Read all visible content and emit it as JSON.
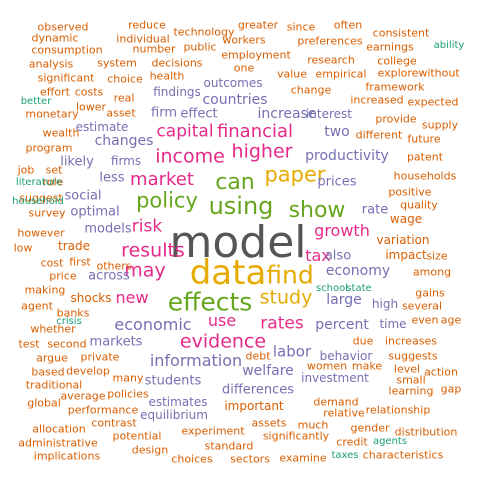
{
  "palette": {
    "gray": "#555555",
    "gold": "#e6ab02",
    "green": "#66a61e",
    "magenta": "#e7298a",
    "purple": "#7570b3",
    "orange": "#d95f02",
    "teal": "#1b9e77"
  },
  "words": [
    {
      "text": "model",
      "color": "gray"
    },
    {
      "text": "data",
      "color": "gold"
    },
    {
      "text": "effects",
      "color": "green"
    },
    {
      "text": "find",
      "color": "gold"
    },
    {
      "text": "using",
      "color": "green"
    },
    {
      "text": "can",
      "color": "green"
    },
    {
      "text": "show",
      "color": "green"
    },
    {
      "text": "policy",
      "color": "green"
    },
    {
      "text": "paper",
      "color": "gold"
    },
    {
      "text": "higher",
      "color": "magenta"
    },
    {
      "text": "evidence",
      "color": "magenta"
    },
    {
      "text": "study",
      "color": "gold"
    },
    {
      "text": "may",
      "color": "magenta"
    },
    {
      "text": "results",
      "color": "magenta"
    },
    {
      "text": "income",
      "color": "magenta"
    },
    {
      "text": "market",
      "color": "magenta"
    },
    {
      "text": "financial",
      "color": "magenta"
    },
    {
      "text": "capital",
      "color": "magenta"
    },
    {
      "text": "rates",
      "color": "magenta"
    },
    {
      "text": "risk",
      "color": "magenta"
    },
    {
      "text": "use",
      "color": "magenta"
    },
    {
      "text": "growth",
      "color": "magenta"
    },
    {
      "text": "tax",
      "color": "magenta"
    },
    {
      "text": "new",
      "color": "magenta"
    },
    {
      "text": "information",
      "color": "purple"
    },
    {
      "text": "economic",
      "color": "purple"
    },
    {
      "text": "labor",
      "color": "purple"
    },
    {
      "text": "productivity",
      "color": "purple"
    },
    {
      "text": "economy",
      "color": "purple"
    },
    {
      "text": "percent",
      "color": "purple"
    },
    {
      "text": "large",
      "color": "purple"
    },
    {
      "text": "welfare",
      "color": "purple"
    },
    {
      "text": "increase",
      "color": "purple"
    },
    {
      "text": "countries",
      "color": "purple"
    },
    {
      "text": "changes",
      "color": "purple"
    },
    {
      "text": "two",
      "color": "purple"
    },
    {
      "text": "effect",
      "color": "purple"
    },
    {
      "text": "firm",
      "color": "purple"
    },
    {
      "text": "prices",
      "color": "purple"
    },
    {
      "text": "rate",
      "color": "purple"
    },
    {
      "text": "also",
      "color": "purple"
    },
    {
      "text": "optimal",
      "color": "purple"
    },
    {
      "text": "models",
      "color": "purple"
    },
    {
      "text": "across",
      "color": "purple"
    },
    {
      "text": "students",
      "color": "purple"
    },
    {
      "text": "differences",
      "color": "purple"
    },
    {
      "text": "markets",
      "color": "purple"
    },
    {
      "text": "social",
      "color": "purple"
    },
    {
      "text": "less",
      "color": "purple"
    },
    {
      "text": "likely",
      "color": "purple"
    },
    {
      "text": "firms",
      "color": "purple"
    },
    {
      "text": "estimate",
      "color": "purple"
    },
    {
      "text": "outcomes",
      "color": "purple"
    },
    {
      "text": "findings",
      "color": "purple"
    },
    {
      "text": "interest",
      "color": "purple"
    },
    {
      "text": "behavior",
      "color": "purple"
    },
    {
      "text": "high",
      "color": "purple"
    },
    {
      "text": "time",
      "color": "purple"
    },
    {
      "text": "estimates",
      "color": "purple"
    },
    {
      "text": "investment",
      "color": "purple"
    },
    {
      "text": "wage",
      "color": "orange"
    },
    {
      "text": "important",
      "color": "orange"
    },
    {
      "text": "equilibrium",
      "color": "purple"
    },
    {
      "text": "shocks",
      "color": "orange"
    },
    {
      "text": "trade",
      "color": "orange"
    },
    {
      "text": "variation",
      "color": "orange"
    },
    {
      "text": "impact",
      "color": "orange"
    },
    {
      "text": "households",
      "color": "orange"
    },
    {
      "text": "positive",
      "color": "orange"
    },
    {
      "text": "quality",
      "color": "orange"
    },
    {
      "text": "among",
      "color": "orange"
    },
    {
      "text": "due",
      "color": "orange"
    },
    {
      "text": "increases",
      "color": "orange"
    },
    {
      "text": "suggests",
      "color": "orange"
    },
    {
      "text": "many",
      "color": "orange"
    },
    {
      "text": "policies",
      "color": "orange"
    },
    {
      "text": "private",
      "color": "orange"
    },
    {
      "text": "banks",
      "color": "orange"
    },
    {
      "text": "price",
      "color": "orange"
    },
    {
      "text": "first",
      "color": "orange"
    },
    {
      "text": "cost",
      "color": "orange"
    },
    {
      "text": "however",
      "color": "orange"
    },
    {
      "text": "survey",
      "color": "orange"
    },
    {
      "text": "suggest",
      "color": "orange"
    },
    {
      "text": "role",
      "color": "orange"
    },
    {
      "text": "program",
      "color": "orange"
    },
    {
      "text": "wealth",
      "color": "orange"
    },
    {
      "text": "job",
      "color": "orange"
    },
    {
      "text": "set",
      "color": "orange"
    },
    {
      "text": "asset",
      "color": "orange"
    },
    {
      "text": "real",
      "color": "orange"
    },
    {
      "text": "lower",
      "color": "orange"
    },
    {
      "text": "costs",
      "color": "orange"
    },
    {
      "text": "effort",
      "color": "orange"
    },
    {
      "text": "significant",
      "color": "orange"
    },
    {
      "text": "choice",
      "color": "orange"
    },
    {
      "text": "health",
      "color": "orange"
    },
    {
      "text": "decisions",
      "color": "orange"
    },
    {
      "text": "system",
      "color": "orange"
    },
    {
      "text": "number",
      "color": "orange"
    },
    {
      "text": "public",
      "color": "orange"
    },
    {
      "text": "workers",
      "color": "orange"
    },
    {
      "text": "employment",
      "color": "orange"
    },
    {
      "text": "one",
      "color": "orange"
    },
    {
      "text": "value",
      "color": "orange"
    },
    {
      "text": "empirical",
      "color": "orange"
    },
    {
      "text": "research",
      "color": "orange"
    },
    {
      "text": "preferences",
      "color": "orange"
    },
    {
      "text": "greater",
      "color": "orange"
    },
    {
      "text": "since",
      "color": "orange"
    },
    {
      "text": "often",
      "color": "orange"
    },
    {
      "text": "technology",
      "color": "orange"
    },
    {
      "text": "reduce",
      "color": "orange"
    },
    {
      "text": "individual",
      "color": "orange"
    },
    {
      "text": "observed",
      "color": "orange"
    },
    {
      "text": "dynamic",
      "color": "orange"
    },
    {
      "text": "consumption",
      "color": "orange"
    },
    {
      "text": "analysis",
      "color": "orange"
    },
    {
      "text": "monetary",
      "color": "orange"
    },
    {
      "text": "consistent",
      "color": "orange"
    },
    {
      "text": "earnings",
      "color": "orange"
    },
    {
      "text": "college",
      "color": "orange"
    },
    {
      "text": "explore",
      "color": "orange"
    },
    {
      "text": "without",
      "color": "orange"
    },
    {
      "text": "framework",
      "color": "orange"
    },
    {
      "text": "increased",
      "color": "orange"
    },
    {
      "text": "expected",
      "color": "orange"
    },
    {
      "text": "provide",
      "color": "orange"
    },
    {
      "text": "supply",
      "color": "orange"
    },
    {
      "text": "different",
      "color": "orange"
    },
    {
      "text": "future",
      "color": "orange"
    },
    {
      "text": "patent",
      "color": "orange"
    },
    {
      "text": "change",
      "color": "orange"
    },
    {
      "text": "low",
      "color": "orange"
    },
    {
      "text": "others",
      "color": "orange"
    },
    {
      "text": "size",
      "color": "orange"
    },
    {
      "text": "making",
      "color": "orange"
    },
    {
      "text": "agent",
      "color": "orange"
    },
    {
      "text": "gains",
      "color": "orange"
    },
    {
      "text": "several",
      "color": "orange"
    },
    {
      "text": "even",
      "color": "orange"
    },
    {
      "text": "age",
      "color": "orange"
    },
    {
      "text": "whether",
      "color": "orange"
    },
    {
      "text": "test",
      "color": "orange"
    },
    {
      "text": "second",
      "color": "orange"
    },
    {
      "text": "argue",
      "color": "orange"
    },
    {
      "text": "based",
      "color": "orange"
    },
    {
      "text": "develop",
      "color": "orange"
    },
    {
      "text": "traditional",
      "color": "orange"
    },
    {
      "text": "global",
      "color": "orange"
    },
    {
      "text": "average",
      "color": "orange"
    },
    {
      "text": "performance",
      "color": "orange"
    },
    {
      "text": "allocation",
      "color": "orange"
    },
    {
      "text": "administrative",
      "color": "orange"
    },
    {
      "text": "implications",
      "color": "orange"
    },
    {
      "text": "contrast",
      "color": "orange"
    },
    {
      "text": "potential",
      "color": "orange"
    },
    {
      "text": "design",
      "color": "orange"
    },
    {
      "text": "experiment",
      "color": "orange"
    },
    {
      "text": "standard",
      "color": "orange"
    },
    {
      "text": "choices",
      "color": "orange"
    },
    {
      "text": "sectors",
      "color": "orange"
    },
    {
      "text": "assets",
      "color": "orange"
    },
    {
      "text": "much",
      "color": "orange"
    },
    {
      "text": "significantly",
      "color": "orange"
    },
    {
      "text": "examine",
      "color": "orange"
    },
    {
      "text": "demand",
      "color": "orange"
    },
    {
      "text": "relative",
      "color": "orange"
    },
    {
      "text": "relationship",
      "color": "orange"
    },
    {
      "text": "gender",
      "color": "orange"
    },
    {
      "text": "distribution",
      "color": "orange"
    },
    {
      "text": "credit",
      "color": "orange"
    },
    {
      "text": "characteristics",
      "color": "orange"
    },
    {
      "text": "women",
      "color": "orange"
    },
    {
      "text": "make",
      "color": "orange"
    },
    {
      "text": "small",
      "color": "orange"
    },
    {
      "text": "learning",
      "color": "orange"
    },
    {
      "text": "level",
      "color": "orange"
    },
    {
      "text": "action",
      "color": "orange"
    },
    {
      "text": "gap",
      "color": "orange"
    },
    {
      "text": "debt",
      "color": "orange"
    },
    {
      "text": "ability",
      "color": "teal"
    },
    {
      "text": "better",
      "color": "teal"
    },
    {
      "text": "literature",
      "color": "teal"
    },
    {
      "text": "household",
      "color": "teal"
    },
    {
      "text": "school",
      "color": "teal"
    },
    {
      "text": "state",
      "color": "teal"
    },
    {
      "text": "crisis",
      "color": "teal"
    },
    {
      "text": "agents",
      "color": "teal"
    },
    {
      "text": "taxes",
      "color": "teal"
    }
  ]
}
